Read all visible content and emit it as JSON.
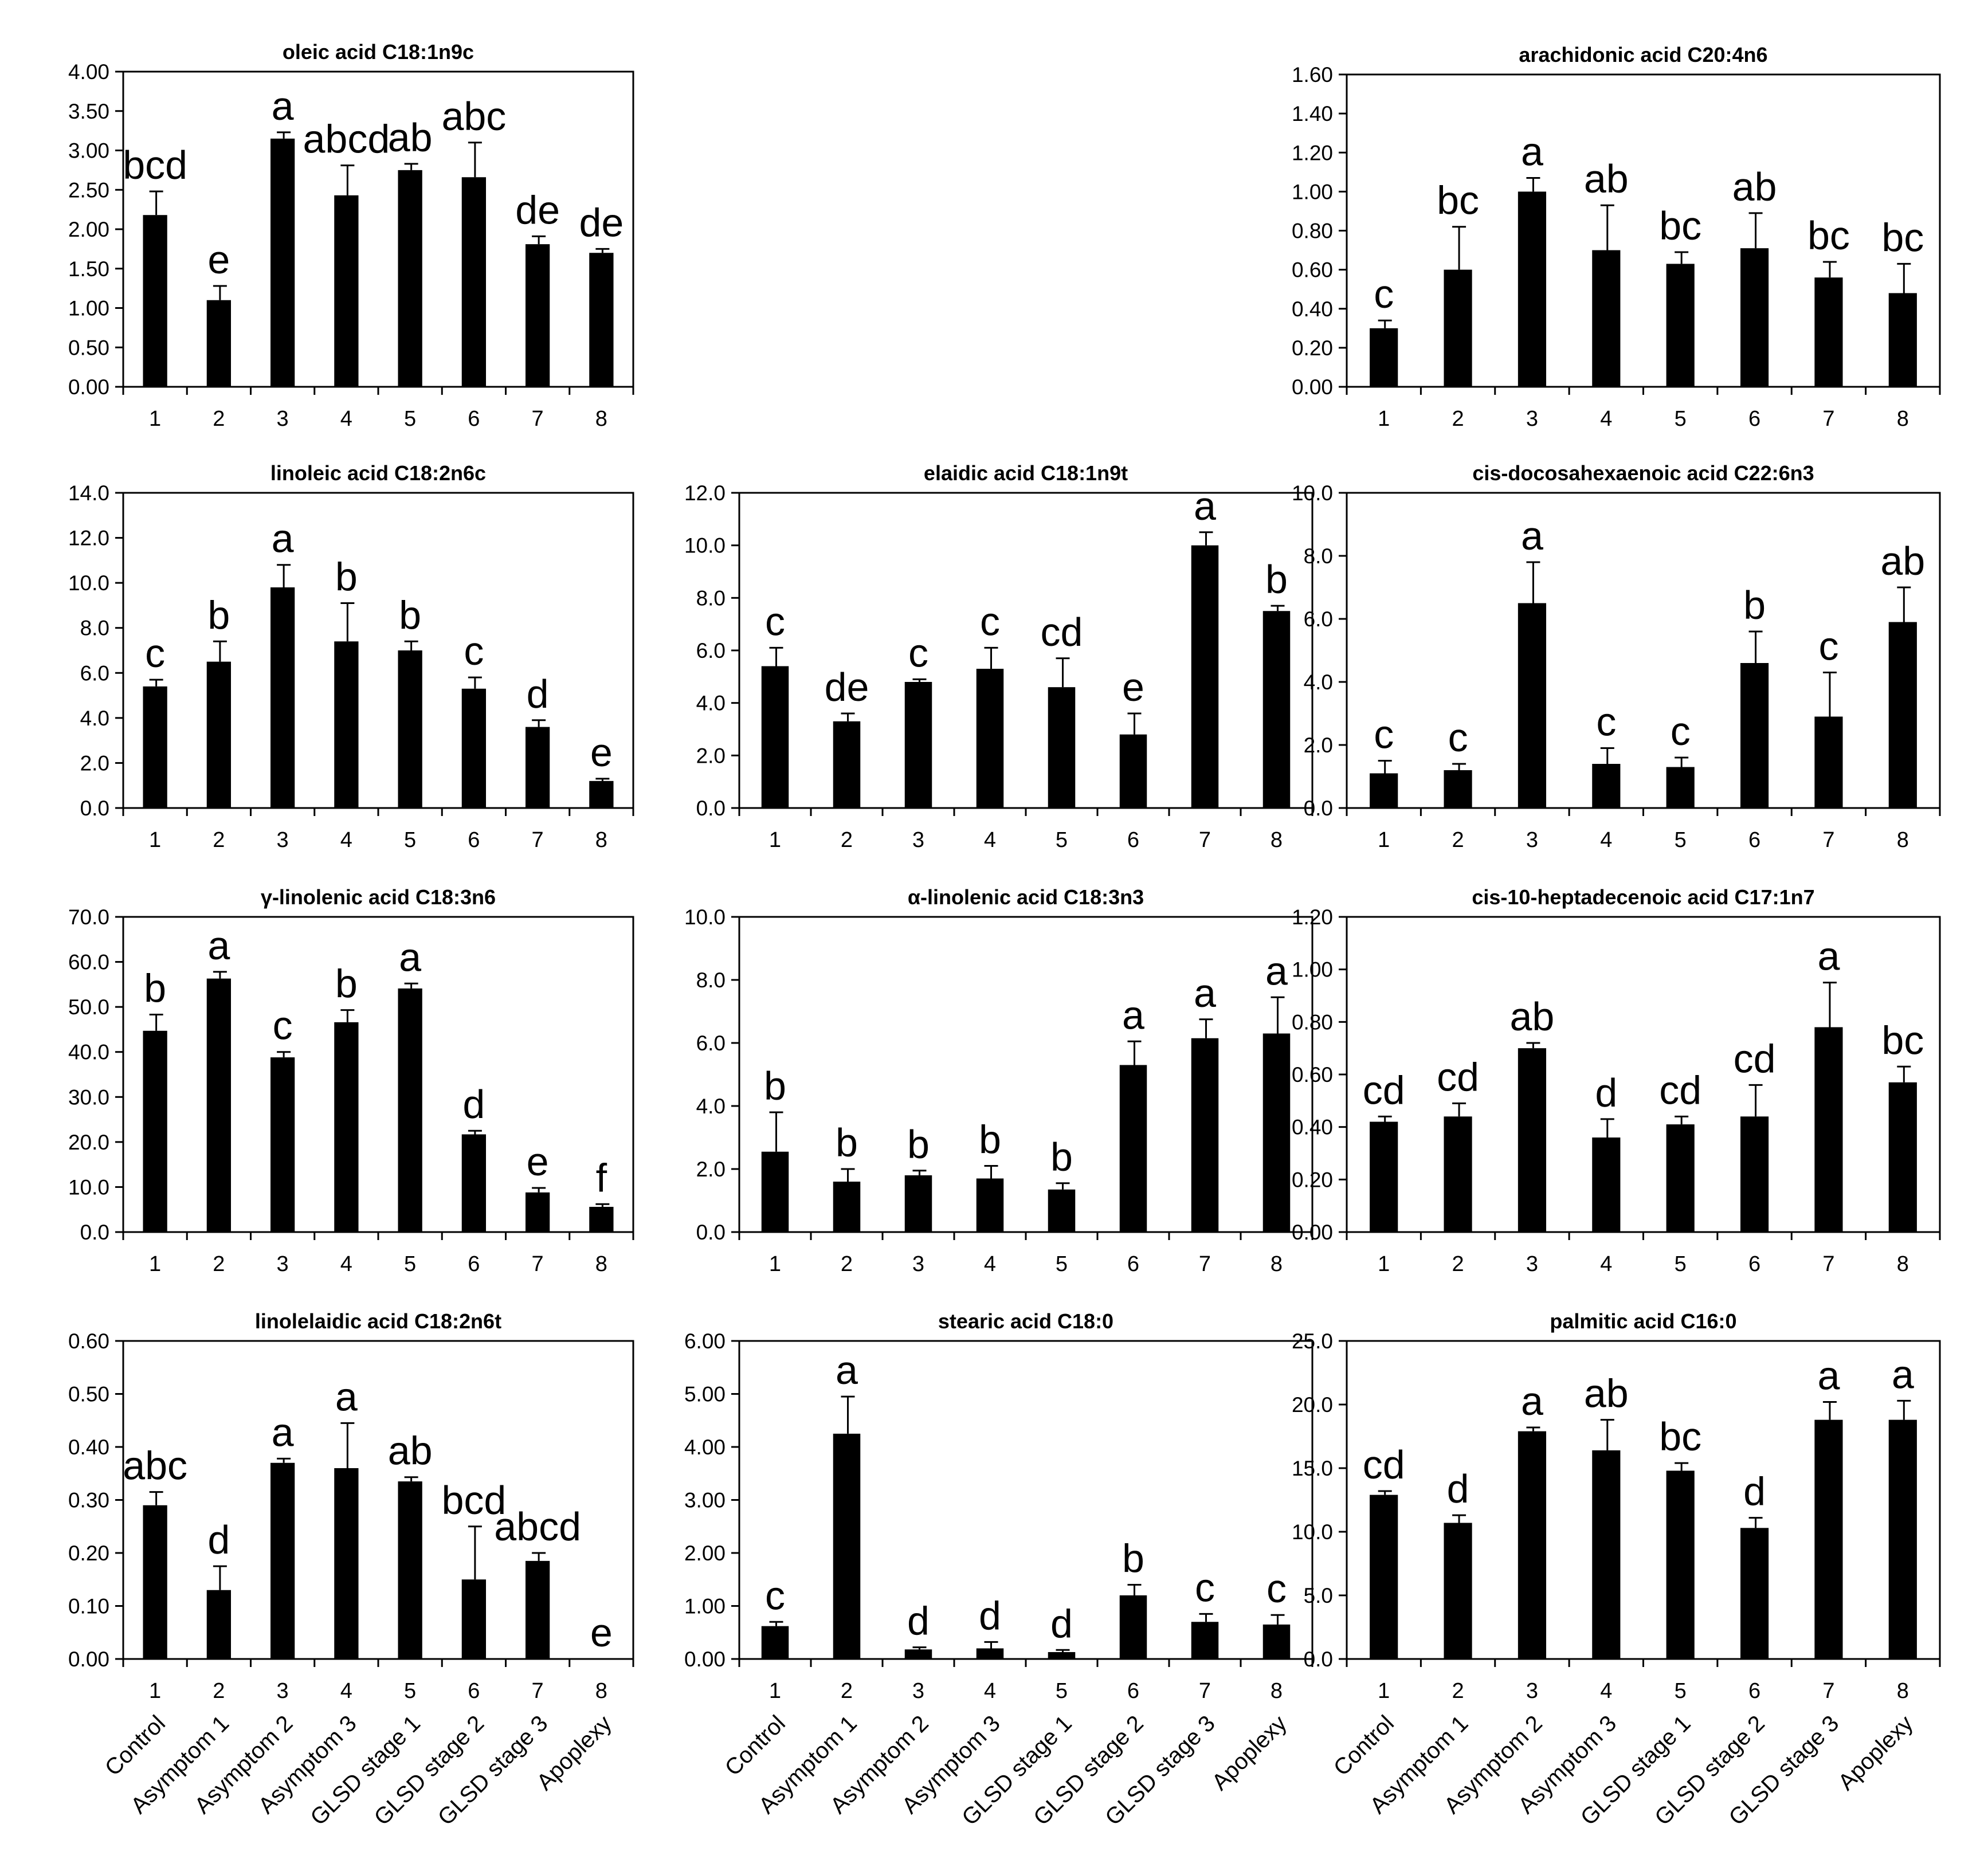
{
  "chart_data": [
    {
      "type": "bar",
      "title": "oleic acid C18:1n9c",
      "categories": [
        "1",
        "2",
        "3",
        "4",
        "5",
        "6",
        "7",
        "8"
      ],
      "values": [
        2.18,
        1.1,
        3.15,
        2.43,
        2.75,
        2.66,
        1.81,
        1.7
      ],
      "errors": [
        0.3,
        0.18,
        0.08,
        0.38,
        0.08,
        0.44,
        0.1,
        0.05
      ],
      "labels": [
        "bcd",
        "e",
        "a",
        "abcd",
        "ab",
        "abc",
        "de",
        "de"
      ],
      "yticks": [
        "0.00",
        "0.50",
        "1.00",
        "1.50",
        "2.00",
        "2.50",
        "3.00",
        "3.50",
        "4.00"
      ],
      "ylim": [
        0,
        4.0
      ]
    },
    {
      "type": "bar",
      "title": "arachidonic acid C20:4n6",
      "categories": [
        "1",
        "2",
        "3",
        "4",
        "5",
        "6",
        "7",
        "8"
      ],
      "values": [
        0.3,
        0.6,
        1.0,
        0.7,
        0.63,
        0.71,
        0.56,
        0.48
      ],
      "errors": [
        0.04,
        0.22,
        0.07,
        0.23,
        0.06,
        0.18,
        0.08,
        0.15
      ],
      "labels": [
        "c",
        "bc",
        "a",
        "ab",
        "bc",
        "ab",
        "bc",
        "bc"
      ],
      "yticks": [
        "0.00",
        "0.20",
        "0.40",
        "0.60",
        "0.80",
        "1.00",
        "1.20",
        "1.40",
        "1.60"
      ],
      "ylim": [
        0,
        1.6
      ]
    },
    {
      "type": "bar",
      "title": "linoleic acid C18:2n6c",
      "categories": [
        "1",
        "2",
        "3",
        "4",
        "5",
        "6",
        "7",
        "8"
      ],
      "values": [
        5.4,
        6.5,
        9.8,
        7.4,
        7.0,
        5.3,
        3.6,
        1.2
      ],
      "errors": [
        0.3,
        0.9,
        1.0,
        1.7,
        0.4,
        0.5,
        0.3,
        0.1
      ],
      "labels": [
        "c",
        "b",
        "a",
        "b",
        "b",
        "c",
        "d",
        "e"
      ],
      "yticks": [
        "0.0",
        "2.0",
        "4.0",
        "6.0",
        "8.0",
        "10.0",
        "12.0",
        "14.0"
      ],
      "ylim": [
        0,
        14.0
      ]
    },
    {
      "type": "bar",
      "title": "elaidic acid C18:1n9t",
      "categories": [
        "1",
        "2",
        "3",
        "4",
        "5",
        "6",
        "7",
        "8"
      ],
      "values": [
        5.4,
        3.3,
        4.8,
        5.3,
        4.6,
        2.8,
        10.0,
        7.5
      ],
      "errors": [
        0.7,
        0.3,
        0.1,
        0.8,
        1.1,
        0.8,
        0.5,
        0.2
      ],
      "labels": [
        "c",
        "de",
        "c",
        "c",
        "cd",
        "e",
        "a",
        "b"
      ],
      "yticks": [
        "0.0",
        "2.0",
        "4.0",
        "6.0",
        "8.0",
        "10.0",
        "12.0"
      ],
      "ylim": [
        0,
        12.0
      ]
    },
    {
      "type": "bar",
      "title": "cis-docosahexaenoic acid C22:6n3",
      "categories": [
        "1",
        "2",
        "3",
        "4",
        "5",
        "6",
        "7",
        "8"
      ],
      "values": [
        1.1,
        1.2,
        6.5,
        1.4,
        1.3,
        4.6,
        2.9,
        5.9
      ],
      "errors": [
        0.4,
        0.2,
        1.3,
        0.5,
        0.3,
        1.0,
        1.4,
        1.1
      ],
      "labels": [
        "c",
        "c",
        "a",
        "c",
        "c",
        "b",
        "c",
        "ab"
      ],
      "yticks": [
        "0.0",
        "2.0",
        "4.0",
        "6.0",
        "8.0",
        "10.0"
      ],
      "ylim": [
        0,
        10.0
      ]
    },
    {
      "type": "bar",
      "title": "γ-linolenic acid C18:3n6",
      "categories": [
        "1",
        "2",
        "3",
        "4",
        "5",
        "6",
        "7",
        "8"
      ],
      "values": [
        44.7,
        56.3,
        38.8,
        46.6,
        54.1,
        21.7,
        8.8,
        5.6
      ],
      "errors": [
        3.6,
        1.5,
        1.2,
        2.7,
        1.1,
        0.8,
        1.0,
        0.6
      ],
      "labels": [
        "b",
        "a",
        "c",
        "b",
        "a",
        "d",
        "e",
        "f"
      ],
      "yticks": [
        "0.0",
        "10.0",
        "20.0",
        "30.0",
        "40.0",
        "50.0",
        "60.0",
        "70.0"
      ],
      "ylim": [
        0,
        70.0
      ]
    },
    {
      "type": "bar",
      "title": "α-linolenic acid C18:3n3",
      "categories": [
        "1",
        "2",
        "3",
        "4",
        "5",
        "6",
        "7",
        "8"
      ],
      "values": [
        2.55,
        1.6,
        1.8,
        1.7,
        1.35,
        5.3,
        6.15,
        6.3
      ],
      "errors": [
        1.25,
        0.4,
        0.15,
        0.4,
        0.2,
        0.75,
        0.6,
        1.15
      ],
      "labels": [
        "b",
        "b",
        "b",
        "b",
        "b",
        "a",
        "a",
        "a"
      ],
      "yticks": [
        "0.0",
        "2.0",
        "4.0",
        "6.0",
        "8.0",
        "10.0"
      ],
      "ylim": [
        0,
        10.0
      ]
    },
    {
      "type": "bar",
      "title": "cis-10-heptadecenoic acid C17:1n7",
      "categories": [
        "1",
        "2",
        "3",
        "4",
        "5",
        "6",
        "7",
        "8"
      ],
      "values": [
        0.42,
        0.44,
        0.7,
        0.36,
        0.41,
        0.44,
        0.78,
        0.57
      ],
      "errors": [
        0.02,
        0.05,
        0.02,
        0.07,
        0.03,
        0.12,
        0.17,
        0.06
      ],
      "labels": [
        "cd",
        "cd",
        "ab",
        "d",
        "cd",
        "cd",
        "a",
        "bc"
      ],
      "yticks": [
        "0.00",
        "0.20",
        "0.40",
        "0.60",
        "0.80",
        "1.00",
        "1.20"
      ],
      "ylim": [
        0,
        1.2
      ]
    },
    {
      "type": "bar",
      "title": "linolelaidic acid C18:2n6t",
      "categories": [
        "1",
        "2",
        "3",
        "4",
        "5",
        "6",
        "7",
        "8"
      ],
      "values": [
        0.29,
        0.13,
        0.37,
        0.36,
        0.335,
        0.15,
        0.185,
        0.0
      ],
      "errors": [
        0.025,
        0.045,
        0.008,
        0.085,
        0.008,
        0.1,
        0.015,
        0.0
      ],
      "labels": [
        "abc",
        "d",
        "a",
        "a",
        "ab",
        "bcd",
        "abcd",
        "e"
      ],
      "yticks": [
        "0.00",
        "0.10",
        "0.20",
        "0.30",
        "0.40",
        "0.50",
        "0.60"
      ],
      "ylim": [
        0,
        0.6
      ],
      "xlabels": [
        "Control",
        "Asymptom 1",
        "Asymptom 2",
        "Asymptom 3",
        "GLSD stage 1",
        "GLSD stage 2",
        "GLSD stage 3",
        "Apoplexy"
      ]
    },
    {
      "type": "bar",
      "title": "stearic acid C18:0",
      "categories": [
        "1",
        "2",
        "3",
        "4",
        "5",
        "6",
        "7",
        "8"
      ],
      "values": [
        0.62,
        4.25,
        0.18,
        0.2,
        0.13,
        1.2,
        0.7,
        0.65
      ],
      "errors": [
        0.08,
        0.7,
        0.04,
        0.12,
        0.04,
        0.2,
        0.15,
        0.18
      ],
      "labels": [
        "c",
        "a",
        "d",
        "d",
        "d",
        "b",
        "c",
        "c"
      ],
      "yticks": [
        "0.00",
        "1.00",
        "2.00",
        "3.00",
        "4.00",
        "5.00",
        "6.00"
      ],
      "ylim": [
        0,
        6.0
      ],
      "xlabels": [
        "Control",
        "Asymptom 1",
        "Asymptom 2",
        "Asymptom 3",
        "GLSD stage 1",
        "GLSD stage 2",
        "GLSD stage 3",
        "Apoplexy"
      ]
    },
    {
      "type": "bar",
      "title": "palmitic acid C16:0",
      "categories": [
        "1",
        "2",
        "3",
        "4",
        "5",
        "6",
        "7",
        "8"
      ],
      "values": [
        12.9,
        10.7,
        17.9,
        16.4,
        14.8,
        10.3,
        18.8,
        18.8
      ],
      "errors": [
        0.3,
        0.6,
        0.3,
        2.4,
        0.6,
        0.8,
        1.4,
        1.5
      ],
      "labels": [
        "cd",
        "d",
        "a",
        "ab",
        "bc",
        "d",
        "a",
        "a"
      ],
      "yticks": [
        "0.0",
        "5.0",
        "10.0",
        "15.0",
        "20.0",
        "25.0"
      ],
      "ylim": [
        0,
        25.0
      ],
      "xlabels": [
        "Control",
        "Asymptom 1",
        "Asymptom 2",
        "Asymptom 3",
        "GLSD stage 1",
        "GLSD stage 2",
        "GLSD stage 3",
        "Apoplexy"
      ]
    }
  ]
}
